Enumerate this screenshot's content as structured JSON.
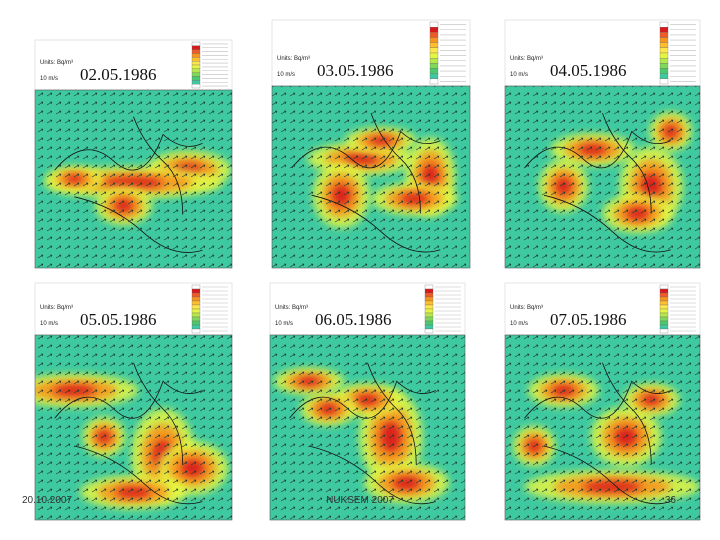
{
  "panels": [
    {
      "date": "02.05.1986",
      "units": "Units: Bq/m³",
      "scale": "10 m/s"
    },
    {
      "date": "03.05.1986",
      "units": "Units: Bq/m³",
      "scale": "10 m/s"
    },
    {
      "date": "04.05.1986",
      "units": "Units: Bq/m³",
      "scale": "10 m/s"
    },
    {
      "date": "05.05.1986",
      "units": "Units: Bq/m³",
      "scale": "10 m/s"
    },
    {
      "date": "06.05.1986",
      "units": "Units: Bq/m³",
      "scale": "10 m/s"
    },
    {
      "date": "07.05.1986",
      "units": "Units: Bq/m³",
      "scale": "10 m/s"
    }
  ],
  "footer": {
    "date": "20.10.2007",
    "center": "NUKSEM 2007",
    "page": "36"
  }
}
